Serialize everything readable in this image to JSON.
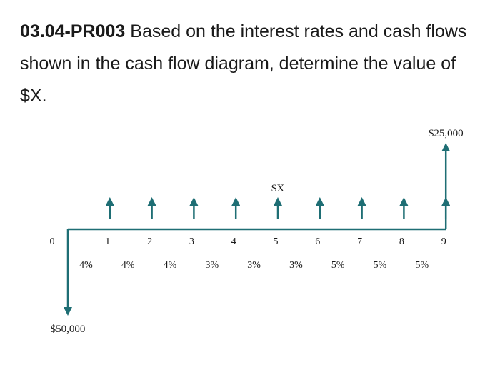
{
  "problem": {
    "id": "03.04-PR003",
    "text": "Based on the interest rates and cash flows shown in the cash flow diagram, determine the value of $X."
  },
  "diagram": {
    "periods": [
      "0",
      "1",
      "2",
      "3",
      "4",
      "5",
      "6",
      "7",
      "8",
      "9"
    ],
    "rates": [
      "4%",
      "4%",
      "4%",
      "3%",
      "3%",
      "3%",
      "5%",
      "5%",
      "5%"
    ],
    "outflow": {
      "period": 0,
      "label": "$50,000"
    },
    "inflows": {
      "from_period": 1,
      "to_period": 9,
      "label": "$X",
      "label_period": 5
    },
    "final_inflow": {
      "period": 9,
      "label": "$25,000"
    },
    "colors": {
      "arrow": "#1e6e74",
      "line": "#1e6e74",
      "text": "#1a1a1a"
    }
  }
}
